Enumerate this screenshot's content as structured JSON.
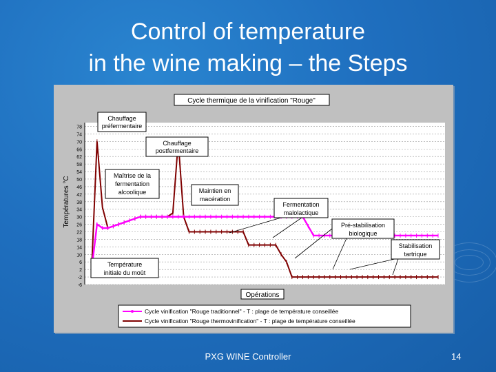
{
  "slide": {
    "title_line1": "Control of temperature",
    "title_line2": "in the wine making – the Steps",
    "footer": "PXG WINE Controller",
    "page_number": "14",
    "background_color": "#1f6fbf"
  },
  "chart_data": {
    "type": "line",
    "title": "Cycle thermique de la vinification \"Rouge\"",
    "ylabel": "Températures °C",
    "xlabel": "Opérations",
    "ylim": [
      -6,
      80
    ],
    "y_ticks": [
      "78",
      "74",
      "70",
      "66",
      "62",
      "58",
      "54",
      "50",
      "46",
      "42",
      "38",
      "34",
      "30",
      "26",
      "22",
      "18",
      "14",
      "10",
      "6",
      "2",
      "-2",
      "-6"
    ],
    "grid": true,
    "legend_position": "bottom",
    "x": [
      0,
      1,
      2,
      3,
      4,
      5,
      6,
      7,
      8,
      9,
      10,
      11,
      12,
      13,
      14,
      15,
      16,
      17,
      18,
      19,
      20,
      21,
      22,
      23,
      24,
      25,
      26,
      27,
      28,
      29,
      30,
      31,
      32,
      33,
      34,
      35,
      36,
      37,
      38,
      39,
      40,
      41,
      42,
      43,
      44,
      45,
      46,
      47,
      48,
      49,
      50,
      51,
      52,
      53,
      54,
      55,
      56,
      57,
      58,
      59,
      60,
      61,
      62,
      63,
      64
    ],
    "series": [
      {
        "name": "Cycle vinification \"Rouge traditionnel\" - T : plage de température conseillée",
        "color": "#ff00ff",
        "values": [
          2,
          26,
          24,
          24,
          25,
          26,
          27,
          28,
          29,
          30,
          30,
          30,
          30,
          30,
          30,
          30,
          30,
          30,
          30,
          30,
          30,
          30,
          30,
          30,
          30,
          30,
          30,
          30,
          30,
          30,
          30,
          30,
          30,
          30,
          30,
          30,
          30,
          30,
          30,
          30,
          25,
          20,
          20,
          20,
          20,
          20,
          20,
          20,
          20,
          20,
          20,
          20,
          20,
          20,
          20,
          20,
          20,
          20,
          20,
          20,
          20,
          20,
          20,
          20,
          20
        ]
      },
      {
        "name": "Cycle vinification \"Rouge thermovinification\" - T : plage de température conseillée",
        "color": "#7f0000",
        "values": [
          2,
          70,
          35,
          24,
          25,
          26,
          27,
          28,
          29,
          30,
          30,
          30,
          30,
          30,
          30,
          32,
          70,
          30,
          22,
          22,
          22,
          22,
          22,
          22,
          22,
          22,
          22,
          22,
          22,
          15,
          15,
          15,
          15,
          15,
          15,
          10,
          6,
          -2,
          -2,
          -2,
          -2,
          -2,
          -2,
          -2,
          -2,
          -2,
          -2,
          -2,
          -2,
          -2,
          -2,
          -2,
          -2,
          -2,
          -2,
          -2,
          -2,
          -2,
          -2,
          -2,
          -2,
          -2,
          -2,
          -2,
          -2
        ]
      }
    ],
    "annotations": [
      "Chauffage préfermentaire",
      "Chauffage postfermentaire",
      "Maîtrise de la fermentation alcoolique",
      "Maintien en macération",
      "Fermentation malolactique",
      "Pré-stabilisation biologique",
      "Stabilisation tartrique",
      "Température initiale du moût"
    ]
  }
}
